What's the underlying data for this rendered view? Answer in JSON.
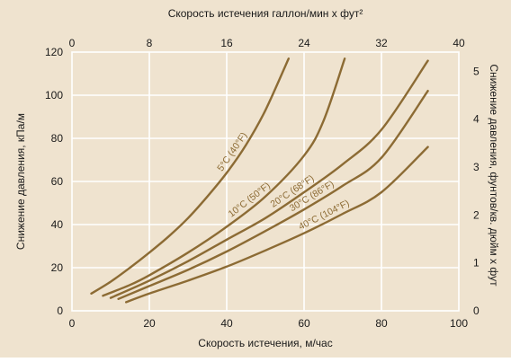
{
  "chart_data": {
    "type": "line",
    "background_color": "#efe3cf",
    "grid": true,
    "grid_color": "#ffffff",
    "line_color": "#8c6b34",
    "xlabel": "Скорость истечения, м/час",
    "ylabel": "Снижение давления, кПа/м",
    "x2label": "Скорость истечения галлон/мин x фут²",
    "y2label": "Снижение давления, фунтов/кв. дюйм x фут",
    "xlim": [
      0,
      100
    ],
    "ylim": [
      0,
      120
    ],
    "x2lim": [
      0,
      40
    ],
    "y2lim": [
      0,
      5.4
    ],
    "x_ticks": [
      0,
      20,
      40,
      60,
      80,
      100
    ],
    "y_ticks": [
      0,
      20,
      40,
      60,
      80,
      100,
      120
    ],
    "x2_ticks": [
      0,
      8,
      16,
      24,
      32,
      40
    ],
    "y2_ticks": [
      0,
      1,
      2,
      3,
      4,
      5
    ],
    "series": [
      {
        "name": "5°C (40°F)",
        "label_at": 43,
        "x": [
          5,
          10,
          15,
          20,
          25,
          30,
          35,
          40,
          45,
          50,
          56
        ],
        "y": [
          8,
          13.5,
          20,
          27,
          34.5,
          43,
          53,
          64,
          77,
          93,
          117
        ]
      },
      {
        "name": "10°C (50°F)",
        "label_at": 47,
        "x": [
          8,
          15,
          20,
          30,
          40,
          50,
          60,
          65,
          70.5
        ],
        "y": [
          7,
          12,
          16.5,
          27,
          39,
          53,
          72,
          88,
          117
        ]
      },
      {
        "name": "20°C (68°F)",
        "label_at": 58,
        "x": [
          10,
          20,
          30,
          40,
          50,
          60,
          70,
          80,
          92
        ],
        "y": [
          6,
          14,
          23,
          33,
          43,
          55,
          68,
          84,
          116
        ]
      },
      {
        "name": "30°C (86°F)",
        "label_at": 63,
        "x": [
          12,
          20,
          30,
          40,
          50,
          60,
          70,
          80,
          92
        ],
        "y": [
          5.5,
          11.5,
          19,
          27.5,
          37,
          47,
          58,
          71,
          102
        ]
      },
      {
        "name": "40°C (104°F)",
        "label_at": 66,
        "x": [
          14,
          20,
          30,
          40,
          50,
          60,
          70,
          80,
          92
        ],
        "y": [
          4,
          8,
          14,
          20.5,
          28,
          36,
          45,
          55,
          76
        ]
      }
    ]
  }
}
